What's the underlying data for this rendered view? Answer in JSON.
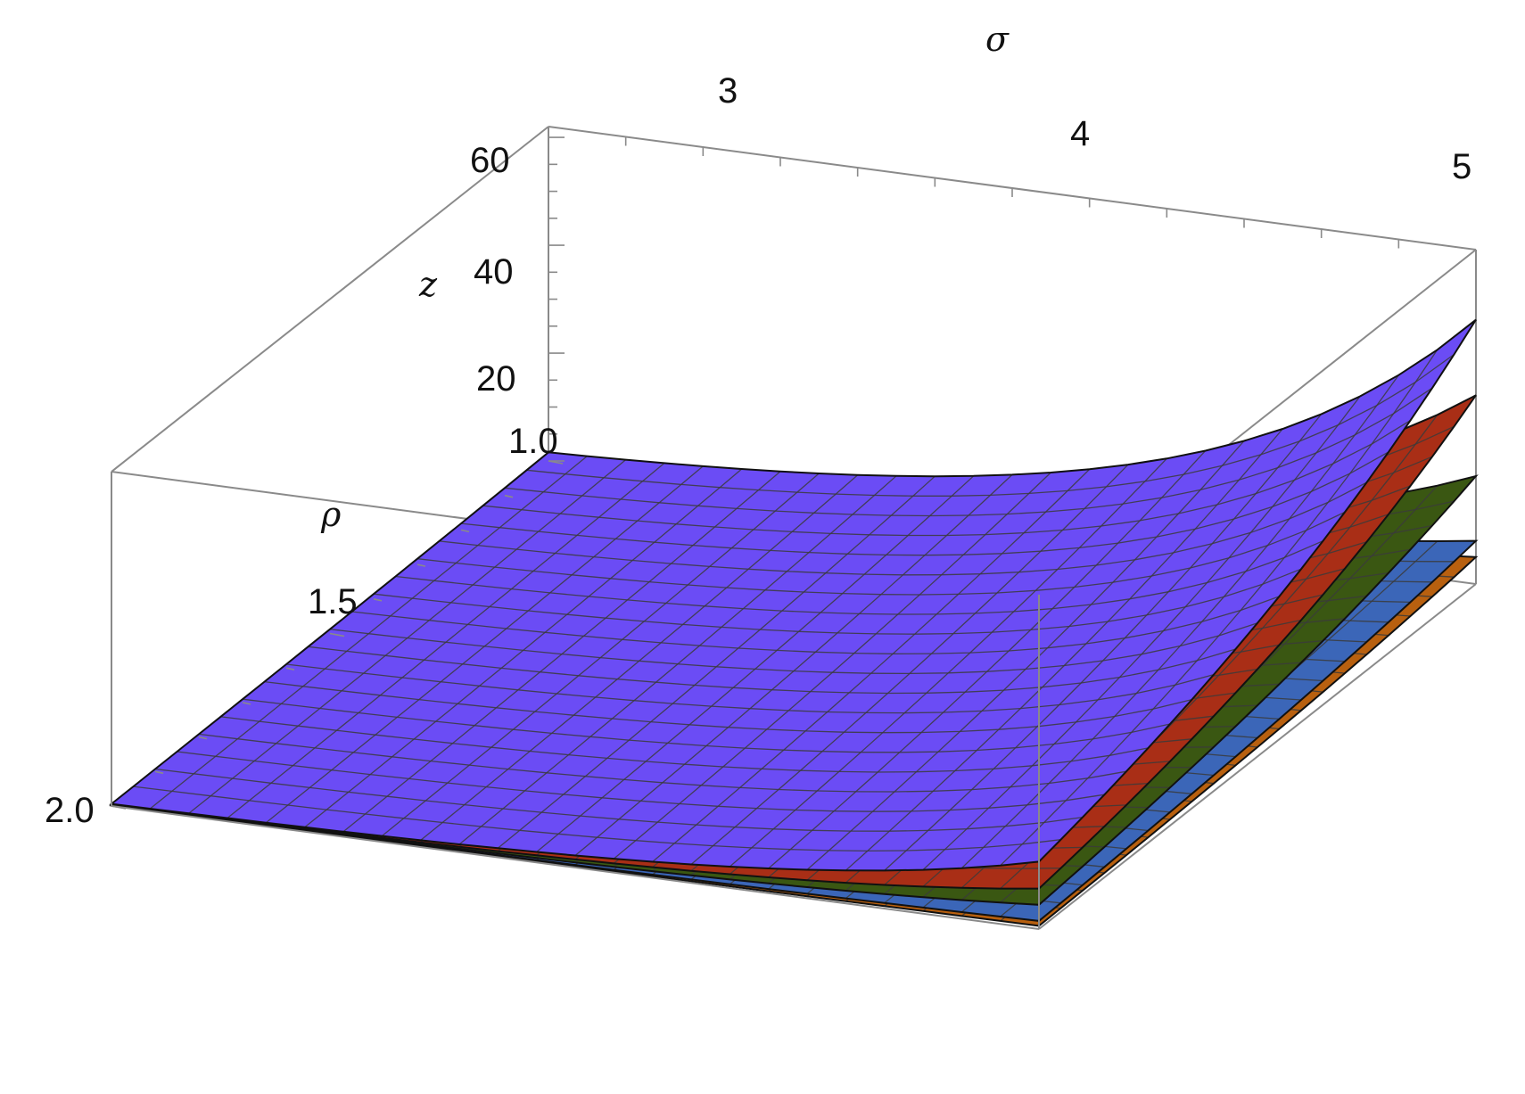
{
  "chart_data": {
    "type": "surface3d",
    "title": "",
    "axes": {
      "x": {
        "label": "σ",
        "range": [
          2.5,
          5
        ],
        "ticks": [
          "3",
          "4",
          "5"
        ]
      },
      "y": {
        "label": "ρ",
        "range": [
          1.0,
          2.0
        ],
        "ticks": [
          "1.0",
          "1.5",
          "2.0"
        ]
      },
      "z": {
        "label": "z",
        "range": [
          0,
          62
        ],
        "ticks": [
          "20",
          "40",
          "60"
        ]
      }
    },
    "mesh": {
      "sigma_steps": 24,
      "rho_steps": 20
    },
    "series": [
      {
        "color": "#b8600f",
        "corners": {
          "s2.5_r1.0": 0.2,
          "s5_r1.0": 5.0,
          "s2.5_r2.0": 0.1,
          "s5_r2.0": 0.6
        }
      },
      {
        "color": "#3b66b8",
        "corners": {
          "s2.5_r1.0": 0.3,
          "s5_r1.0": 8.0,
          "s2.5_r2.0": 0.15,
          "s5_r2.0": 1.5
        }
      },
      {
        "color": "#3a5712",
        "corners": {
          "s2.5_r1.0": 0.6,
          "s5_r1.0": 20.0,
          "s2.5_r2.0": 0.2,
          "s5_r2.0": 4.5
        }
      },
      {
        "color": "#a92e16",
        "corners": {
          "s2.5_r1.0": 1.2,
          "s5_r1.0": 35.0,
          "s2.5_r2.0": 0.3,
          "s5_r2.0": 7.5
        }
      },
      {
        "color": "#6b4cf5",
        "corners": {
          "s2.5_r1.0": 1.6,
          "s5_r1.0": 49.0,
          "s2.5_r2.0": 0.4,
          "s5_r2.0": 12.5
        }
      }
    ]
  }
}
